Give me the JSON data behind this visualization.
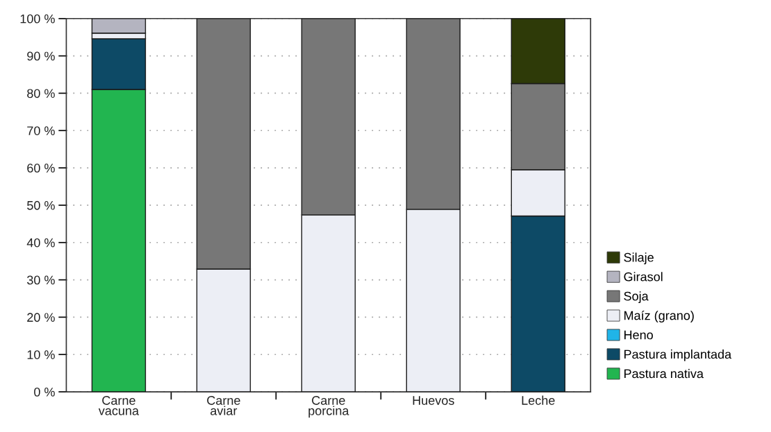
{
  "chart_data": {
    "type": "bar",
    "stacked": true,
    "categories": [
      "Carne\nvacuna",
      "Carne\naviar",
      "Carne\nporcina",
      "Huevos",
      "Leche"
    ],
    "series": [
      {
        "name": "Pastura nativa",
        "color": "#22b550",
        "values": [
          81,
          null,
          null,
          null,
          null
        ]
      },
      {
        "name": "Pastura implantada",
        "color": "#0d4a66",
        "values": [
          13.6,
          null,
          null,
          null,
          47.1
        ]
      },
      {
        "name": "Heno",
        "color": "#20b4e8",
        "values": [
          null,
          null,
          null,
          null,
          null
        ]
      },
      {
        "name": "Maíz (grano)",
        "color": "#eceef5",
        "values": [
          1.5,
          32.9,
          47.4,
          48.9,
          12.4
        ]
      },
      {
        "name": "Soja",
        "color": "#777777",
        "values": [
          null,
          67.1,
          52.6,
          51.1,
          23.1
        ]
      },
      {
        "name": "Girasol",
        "color": "#b4b4c0",
        "values": [
          3.9,
          null,
          null,
          null,
          null
        ]
      },
      {
        "name": "Silaje",
        "color": "#2e3a08",
        "values": [
          null,
          null,
          null,
          null,
          17.4
        ]
      }
    ],
    "ylim": [
      0,
      100
    ],
    "yticks": [
      {
        "value": 0,
        "label": "0 %"
      },
      {
        "value": 10,
        "label": "10 %"
      },
      {
        "value": 20,
        "label": "20 %"
      },
      {
        "value": 30,
        "label": "30 %"
      },
      {
        "value": 40,
        "label": "40 %"
      },
      {
        "value": 50,
        "label": "50 %"
      },
      {
        "value": 60,
        "label": "60 %"
      },
      {
        "value": 70,
        "label": "70 %"
      },
      {
        "value": 80,
        "label": "80 %"
      },
      {
        "value": 90,
        "label": "90 %"
      },
      {
        "value": 100,
        "label": "100 %"
      }
    ],
    "grid": "y",
    "legend": "bottom right"
  }
}
